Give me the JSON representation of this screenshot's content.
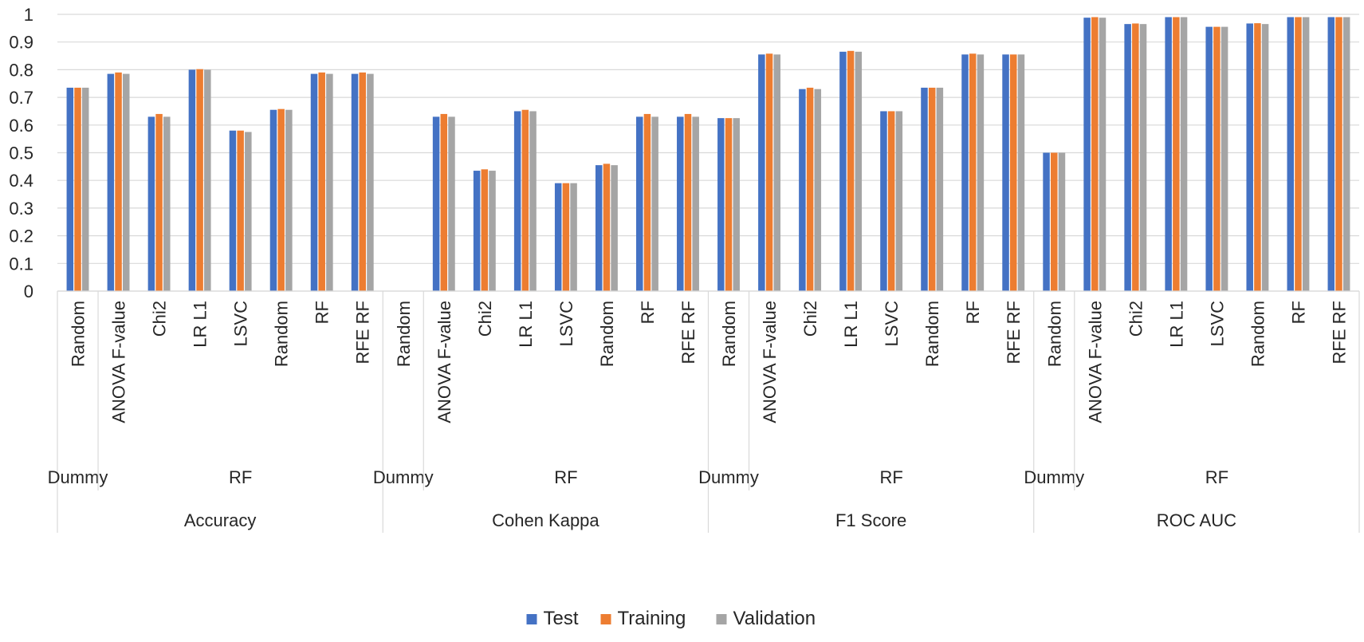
{
  "chart_data": {
    "type": "bar",
    "title": "",
    "xlabel": "",
    "ylabel": "",
    "ylim": [
      0,
      1
    ],
    "yticks": [
      0,
      0.1,
      0.2,
      0.3,
      0.4,
      0.5,
      0.6,
      0.7,
      0.8,
      0.9,
      1
    ],
    "ytick_labels": [
      "0",
      "0.1",
      "0.2",
      "0.3",
      "0.4",
      "0.5",
      "0.6",
      "0.7",
      "0.8",
      "0.9",
      "1"
    ],
    "grid": true,
    "legend_position": "bottom",
    "metrics": [
      "Accuracy",
      "Cohen Kappa",
      "F1 Score",
      "ROC AUC"
    ],
    "models": [
      "Dummy",
      "RF"
    ],
    "categories": [
      {
        "metric": "Accuracy",
        "model": "Dummy",
        "method": "Random"
      },
      {
        "metric": "Accuracy",
        "model": "RF",
        "method": "ANOVA F-value"
      },
      {
        "metric": "Accuracy",
        "model": "RF",
        "method": "Chi2"
      },
      {
        "metric": "Accuracy",
        "model": "RF",
        "method": "LR L1"
      },
      {
        "metric": "Accuracy",
        "model": "RF",
        "method": "LSVC"
      },
      {
        "metric": "Accuracy",
        "model": "RF",
        "method": "Random"
      },
      {
        "metric": "Accuracy",
        "model": "RF",
        "method": "RF"
      },
      {
        "metric": "Accuracy",
        "model": "RF",
        "method": "RFE RF"
      },
      {
        "metric": "Cohen Kappa",
        "model": "Dummy",
        "method": "Random"
      },
      {
        "metric": "Cohen Kappa",
        "model": "RF",
        "method": "ANOVA F-value"
      },
      {
        "metric": "Cohen Kappa",
        "model": "RF",
        "method": "Chi2"
      },
      {
        "metric": "Cohen Kappa",
        "model": "RF",
        "method": "LR L1"
      },
      {
        "metric": "Cohen Kappa",
        "model": "RF",
        "method": "LSVC"
      },
      {
        "metric": "Cohen Kappa",
        "model": "RF",
        "method": "Random"
      },
      {
        "metric": "Cohen Kappa",
        "model": "RF",
        "method": "RF"
      },
      {
        "metric": "Cohen Kappa",
        "model": "RF",
        "method": "RFE RF"
      },
      {
        "metric": "F1 Score",
        "model": "Dummy",
        "method": "Random"
      },
      {
        "metric": "F1 Score",
        "model": "RF",
        "method": "ANOVA F-value"
      },
      {
        "metric": "F1 Score",
        "model": "RF",
        "method": "Chi2"
      },
      {
        "metric": "F1 Score",
        "model": "RF",
        "method": "LR L1"
      },
      {
        "metric": "F1 Score",
        "model": "RF",
        "method": "LSVC"
      },
      {
        "metric": "F1 Score",
        "model": "RF",
        "method": "Random"
      },
      {
        "metric": "F1 Score",
        "model": "RF",
        "method": "RF"
      },
      {
        "metric": "F1 Score",
        "model": "RF",
        "method": "RFE RF"
      },
      {
        "metric": "ROC AUC",
        "model": "Dummy",
        "method": "Random"
      },
      {
        "metric": "ROC AUC",
        "model": "RF",
        "method": "ANOVA F-value"
      },
      {
        "metric": "ROC AUC",
        "model": "RF",
        "method": "Chi2"
      },
      {
        "metric": "ROC AUC",
        "model": "RF",
        "method": "LR L1"
      },
      {
        "metric": "ROC AUC",
        "model": "RF",
        "method": "LSVC"
      },
      {
        "metric": "ROC AUC",
        "model": "RF",
        "method": "Random"
      },
      {
        "metric": "ROC AUC",
        "model": "RF",
        "method": "RF"
      },
      {
        "metric": "ROC AUC",
        "model": "RF",
        "method": "RFE RF"
      }
    ],
    "series": [
      {
        "name": "Test",
        "color": "#4472C4",
        "values": [
          0.735,
          0.785,
          0.63,
          0.8,
          0.58,
          0.655,
          0.785,
          0.785,
          0.0,
          0.63,
          0.435,
          0.65,
          0.39,
          0.455,
          0.63,
          0.63,
          0.625,
          0.855,
          0.73,
          0.865,
          0.65,
          0.735,
          0.855,
          0.855,
          0.5,
          0.988,
          0.965,
          0.99,
          0.955,
          0.967,
          0.99,
          0.99
        ]
      },
      {
        "name": "Training",
        "color": "#ED7D31",
        "values": [
          0.735,
          0.79,
          0.64,
          0.802,
          0.58,
          0.658,
          0.79,
          0.79,
          0.0,
          0.64,
          0.44,
          0.655,
          0.39,
          0.46,
          0.64,
          0.64,
          0.625,
          0.858,
          0.735,
          0.868,
          0.65,
          0.735,
          0.858,
          0.855,
          0.5,
          0.99,
          0.967,
          0.99,
          0.955,
          0.968,
          0.99,
          0.99
        ]
      },
      {
        "name": "Validation",
        "color": "#A5A5A5",
        "values": [
          0.735,
          0.785,
          0.63,
          0.8,
          0.575,
          0.655,
          0.785,
          0.785,
          0.0,
          0.63,
          0.435,
          0.65,
          0.39,
          0.455,
          0.63,
          0.63,
          0.625,
          0.855,
          0.73,
          0.865,
          0.65,
          0.735,
          0.855,
          0.855,
          0.5,
          0.988,
          0.965,
          0.99,
          0.955,
          0.965,
          0.99,
          0.99
        ]
      }
    ]
  }
}
